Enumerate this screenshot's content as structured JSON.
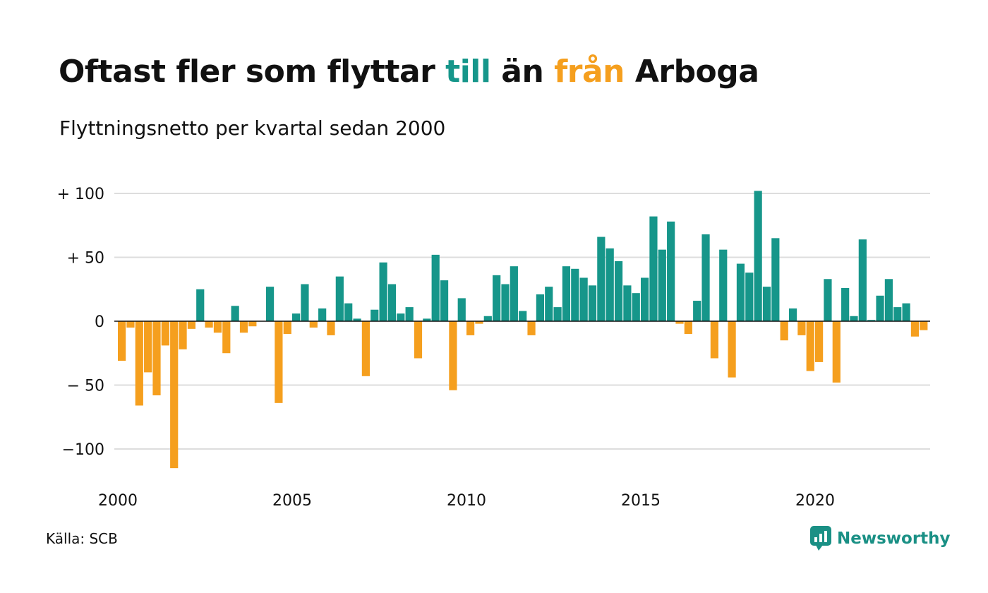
{
  "header": {
    "title_part1": "Oftast fler som flyttar",
    "title_to": "till",
    "title_part2": "än",
    "title_from": "från",
    "title_part3": "Arboga",
    "subtitle": "Flyttningsnetto per kvartal sedan 2000"
  },
  "footer": {
    "source": "Källa: SCB",
    "brand": "Newsworthy",
    "brand_icon": "newsworthy-logo-icon"
  },
  "colors": {
    "positive": "#16968a",
    "negative": "#f59f1e",
    "gridline": "#dddddd",
    "zero_line": "#111111",
    "text": "#111111",
    "brand": "#1a9085"
  },
  "chart_data": {
    "type": "bar",
    "title": "Oftast fler som flyttar till än från Arboga",
    "subtitle": "Flyttningsnetto per kvartal sedan 2000",
    "xlabel": "",
    "ylabel": "",
    "ylim": [
      -120,
      105
    ],
    "grid": true,
    "y_ticks": [
      100,
      50,
      0,
      -50,
      -100
    ],
    "y_tick_labels": [
      "+ 100",
      "+  50",
      "0",
      "− 50",
      "−100"
    ],
    "x_ticks": [
      "2000",
      "2005",
      "2010",
      "2015",
      "2020"
    ],
    "start_year": 2000,
    "quarters_per_year": 4,
    "values": [
      -31,
      -5,
      -66,
      -40,
      -58,
      -19,
      -115,
      -22,
      -6,
      25,
      -5,
      -9,
      -25,
      12,
      -9,
      -4,
      0,
      27,
      -64,
      -10,
      6,
      29,
      -5,
      10,
      -11,
      35,
      14,
      2,
      -43,
      9,
      46,
      29,
      6,
      11,
      -29,
      2,
      52,
      32,
      -54,
      18,
      -11,
      -2,
      4,
      36,
      29,
      43,
      8,
      -11,
      21,
      27,
      11,
      43,
      41,
      34,
      28,
      66,
      57,
      47,
      28,
      22,
      34,
      82,
      56,
      78,
      -2,
      -10,
      16,
      68,
      -29,
      56,
      -44,
      45,
      38,
      102,
      27,
      65,
      -15,
      10,
      -11,
      -39,
      -32,
      33,
      -48,
      26,
      4,
      64,
      1,
      20,
      33,
      11,
      14,
      -12,
      -7
    ]
  }
}
